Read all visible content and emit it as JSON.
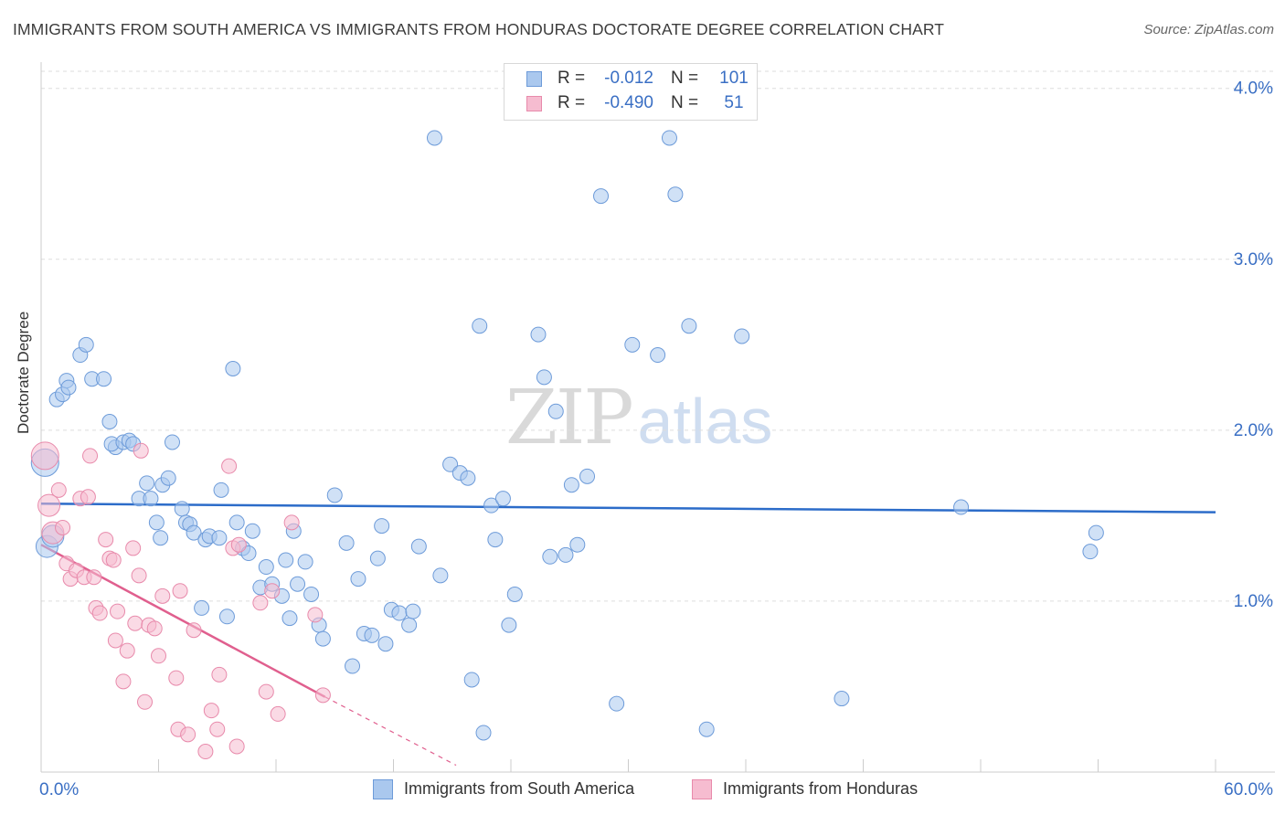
{
  "title": "IMMIGRANTS FROM SOUTH AMERICA VS IMMIGRANTS FROM HONDURAS DOCTORATE DEGREE CORRELATION CHART",
  "source": "Source: ZipAtlas.com",
  "watermark": {
    "zip": "ZIP",
    "atlas": "atlas"
  },
  "legend_top": [
    {
      "r_label": "R =",
      "r_value": "-0.012",
      "n_label": "N =",
      "n_value": "101"
    },
    {
      "r_label": "R =",
      "r_value": "-0.490",
      "n_label": "N =",
      "n_value": "51"
    }
  ],
  "colors": {
    "blue_fill": "#aac8ee",
    "blue_stroke": "#6d9bd9",
    "blue_line": "#2c6cc9",
    "pink_fill": "#f6bcd0",
    "pink_stroke": "#e88aab",
    "pink_line": "#e05f8e",
    "grid": "#dddddd",
    "axis_text": "#3a6fc4"
  },
  "chart_data": {
    "type": "scatter",
    "title": "IMMIGRANTS FROM SOUTH AMERICA VS IMMIGRANTS FROM HONDURAS DOCTORATE DEGREE CORRELATION CHART",
    "xlabel": "",
    "ylabel": "Doctorate Degree",
    "xlim": [
      0,
      60
    ],
    "ylim": [
      0,
      4.1
    ],
    "x_tick_labels": [
      "0.0%",
      "60.0%"
    ],
    "y_ticks": [
      1,
      2,
      3,
      4
    ],
    "y_tick_labels": [
      "1.0%",
      "2.0%",
      "3.0%",
      "4.0%"
    ],
    "legend_position": "bottom",
    "series": [
      {
        "name": "Immigrants from South America",
        "r": -0.012,
        "n": 101,
        "trend": {
          "x": [
            0,
            60
          ],
          "y": [
            1.57,
            1.52
          ]
        },
        "points": [
          [
            0.2,
            1.81
          ],
          [
            0.3,
            1.32
          ],
          [
            0.6,
            1.38
          ],
          [
            0.8,
            2.18
          ],
          [
            1.1,
            2.21
          ],
          [
            1.3,
            2.29
          ],
          [
            1.4,
            2.25
          ],
          [
            2.0,
            2.44
          ],
          [
            2.3,
            2.5
          ],
          [
            2.6,
            2.3
          ],
          [
            3.2,
            2.3
          ],
          [
            3.5,
            2.05
          ],
          [
            3.8,
            1.9
          ],
          [
            3.6,
            1.92
          ],
          [
            4.2,
            1.93
          ],
          [
            4.5,
            1.94
          ],
          [
            4.7,
            1.92
          ],
          [
            5.0,
            1.6
          ],
          [
            5.4,
            1.69
          ],
          [
            5.6,
            1.6
          ],
          [
            5.9,
            1.46
          ],
          [
            6.1,
            1.37
          ],
          [
            6.2,
            1.68
          ],
          [
            6.5,
            1.72
          ],
          [
            6.7,
            1.93
          ],
          [
            7.2,
            1.54
          ],
          [
            7.4,
            1.46
          ],
          [
            7.6,
            1.45
          ],
          [
            7.8,
            1.4
          ],
          [
            8.2,
            0.96
          ],
          [
            8.4,
            1.36
          ],
          [
            8.6,
            1.38
          ],
          [
            9.1,
            1.37
          ],
          [
            9.2,
            1.65
          ],
          [
            9.5,
            0.91
          ],
          [
            9.8,
            2.36
          ],
          [
            10.0,
            1.46
          ],
          [
            10.3,
            1.31
          ],
          [
            10.6,
            1.28
          ],
          [
            10.8,
            1.41
          ],
          [
            11.2,
            1.08
          ],
          [
            11.5,
            1.2
          ],
          [
            11.8,
            1.1
          ],
          [
            12.3,
            1.03
          ],
          [
            12.5,
            1.24
          ],
          [
            12.7,
            0.9
          ],
          [
            12.9,
            1.41
          ],
          [
            13.1,
            1.1
          ],
          [
            13.5,
            1.23
          ],
          [
            13.8,
            1.04
          ],
          [
            14.2,
            0.86
          ],
          [
            14.4,
            0.78
          ],
          [
            15.0,
            1.62
          ],
          [
            15.6,
            1.34
          ],
          [
            15.9,
            0.62
          ],
          [
            16.2,
            1.13
          ],
          [
            16.5,
            0.81
          ],
          [
            16.9,
            0.8
          ],
          [
            17.2,
            1.25
          ],
          [
            17.4,
            1.44
          ],
          [
            17.6,
            0.75
          ],
          [
            17.9,
            0.95
          ],
          [
            18.3,
            0.93
          ],
          [
            18.8,
            0.86
          ],
          [
            19.0,
            0.94
          ],
          [
            19.3,
            1.32
          ],
          [
            20.1,
            3.71
          ],
          [
            20.4,
            1.15
          ],
          [
            20.9,
            1.8
          ],
          [
            21.4,
            1.75
          ],
          [
            21.8,
            1.72
          ],
          [
            22.0,
            0.54
          ],
          [
            22.4,
            2.61
          ],
          [
            22.6,
            0.23
          ],
          [
            23.0,
            1.56
          ],
          [
            23.2,
            1.36
          ],
          [
            23.6,
            1.6
          ],
          [
            23.9,
            0.86
          ],
          [
            24.2,
            1.04
          ],
          [
            25.4,
            2.56
          ],
          [
            25.7,
            2.31
          ],
          [
            26.0,
            1.26
          ],
          [
            26.3,
            2.11
          ],
          [
            26.8,
            1.27
          ],
          [
            27.1,
            1.68
          ],
          [
            27.4,
            1.33
          ],
          [
            27.9,
            1.73
          ],
          [
            28.6,
            3.37
          ],
          [
            29.4,
            0.4
          ],
          [
            30.2,
            2.5
          ],
          [
            31.5,
            2.44
          ],
          [
            32.1,
            3.71
          ],
          [
            32.4,
            3.38
          ],
          [
            33.1,
            2.61
          ],
          [
            34.0,
            0.25
          ],
          [
            35.8,
            2.55
          ],
          [
            40.9,
            0.43
          ],
          [
            47.0,
            1.55
          ],
          [
            53.6,
            1.29
          ],
          [
            53.9,
            1.4
          ]
        ]
      },
      {
        "name": "Immigrants from Honduras",
        "r": -0.49,
        "n": 51,
        "trend": {
          "x": [
            0,
            14.5
          ],
          "y": [
            1.33,
            0.44
          ],
          "dashed_to": {
            "x": [
              14.5,
              21.2
            ],
            "y": [
              0.44,
              0.04
            ]
          }
        },
        "points": [
          [
            0.2,
            1.85
          ],
          [
            0.4,
            1.56
          ],
          [
            0.6,
            1.4
          ],
          [
            0.9,
            1.65
          ],
          [
            1.1,
            1.43
          ],
          [
            1.3,
            1.22
          ],
          [
            1.5,
            1.13
          ],
          [
            1.8,
            1.18
          ],
          [
            2.0,
            1.6
          ],
          [
            2.2,
            1.14
          ],
          [
            2.4,
            1.61
          ],
          [
            2.5,
            1.85
          ],
          [
            2.7,
            1.14
          ],
          [
            2.8,
            0.96
          ],
          [
            3.0,
            0.93
          ],
          [
            3.3,
            1.36
          ],
          [
            3.5,
            1.25
          ],
          [
            3.7,
            1.24
          ],
          [
            3.8,
            0.77
          ],
          [
            3.9,
            0.94
          ],
          [
            4.2,
            0.53
          ],
          [
            4.4,
            0.71
          ],
          [
            4.7,
            1.31
          ],
          [
            4.8,
            0.87
          ],
          [
            5.0,
            1.15
          ],
          [
            5.1,
            1.88
          ],
          [
            5.3,
            0.41
          ],
          [
            5.5,
            0.86
          ],
          [
            5.8,
            0.84
          ],
          [
            6.0,
            0.68
          ],
          [
            6.2,
            1.03
          ],
          [
            6.9,
            0.55
          ],
          [
            7.0,
            0.25
          ],
          [
            7.1,
            1.06
          ],
          [
            7.5,
            0.22
          ],
          [
            7.8,
            0.83
          ],
          [
            8.4,
            0.12
          ],
          [
            8.7,
            0.36
          ],
          [
            9.0,
            0.25
          ],
          [
            9.1,
            0.57
          ],
          [
            9.6,
            1.79
          ],
          [
            9.8,
            1.31
          ],
          [
            10.0,
            0.15
          ],
          [
            11.2,
            0.99
          ],
          [
            11.5,
            0.47
          ],
          [
            11.8,
            1.06
          ],
          [
            12.1,
            0.34
          ],
          [
            12.8,
            1.46
          ],
          [
            14.0,
            0.92
          ],
          [
            14.4,
            0.45
          ],
          [
            10.1,
            1.33
          ]
        ]
      }
    ]
  }
}
